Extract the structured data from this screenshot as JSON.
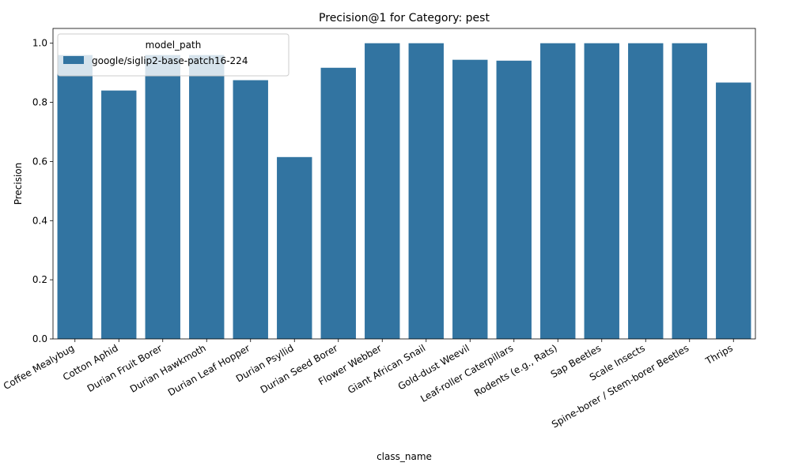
{
  "chart_data": {
    "type": "bar",
    "title": "Precision@1 for Category: pest",
    "xlabel": "class_name",
    "ylabel": "Precision",
    "ylim": [
      0,
      1.05
    ],
    "yticks": [
      0.0,
      0.2,
      0.4,
      0.6,
      0.8,
      1.0
    ],
    "ytick_labels": [
      "0.0",
      "0.2",
      "0.4",
      "0.6",
      "0.8",
      "1.0"
    ],
    "grid": false,
    "legend_position": "top-left",
    "legend_title": "model_path",
    "bar_color": "#3274a1",
    "categories": [
      "Coffee Mealybug",
      "Cotton Aphid",
      "Durian Fruit Borer",
      "Durian Hawkmoth",
      "Durian Leaf Hopper",
      "Durian Psyllid",
      "Durian Seed Borer",
      "Flower Webber",
      "Giant African Snail",
      "Gold-dust Weevil",
      "Leaf-roller Caterpillars",
      "Rodents (e.g., Rats)",
      "Sap Beetles",
      "Scale Insects",
      "Spine-borer / Stem-borer Beetles",
      "Thrips"
    ],
    "series": [
      {
        "name": "google/siglip2-base-patch16-224",
        "values": [
          0.96,
          0.84,
          0.96,
          0.96,
          0.875,
          0.615,
          0.917,
          1.0,
          1.0,
          0.944,
          0.941,
          1.0,
          1.0,
          1.0,
          1.0,
          0.867
        ]
      }
    ]
  }
}
